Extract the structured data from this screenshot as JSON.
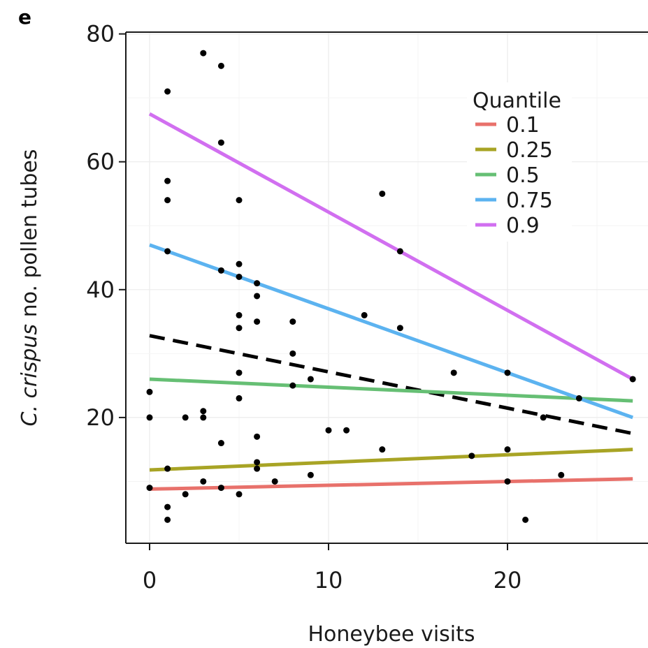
{
  "panel_label": "e",
  "chart_data": {
    "type": "scatter",
    "xlabel": "Honeybee visits",
    "ylabel_italic": "C. crispus",
    "ylabel_rest": " no. pollen tubes",
    "xlim": [
      -1.5,
      28
    ],
    "ylim": [
      0,
      80
    ],
    "xticks": [
      0,
      10,
      20
    ],
    "xtick_labels": [
      "0",
      "10",
      "20"
    ],
    "yticks": [
      20,
      40,
      60,
      80
    ],
    "ytick_labels": [
      "20",
      "40",
      "60",
      "80"
    ],
    "grid": true,
    "points": [
      {
        "x": 0,
        "y": 24
      },
      {
        "x": 0,
        "y": 20
      },
      {
        "x": 0,
        "y": 9
      },
      {
        "x": 1,
        "y": 71
      },
      {
        "x": 1,
        "y": 57
      },
      {
        "x": 1,
        "y": 54
      },
      {
        "x": 1,
        "y": 46
      },
      {
        "x": 1,
        "y": 12
      },
      {
        "x": 1,
        "y": 6
      },
      {
        "x": 1,
        "y": 4
      },
      {
        "x": 2,
        "y": 20
      },
      {
        "x": 2,
        "y": 8
      },
      {
        "x": 3,
        "y": 77
      },
      {
        "x": 3,
        "y": 21
      },
      {
        "x": 3,
        "y": 20
      },
      {
        "x": 3,
        "y": 10
      },
      {
        "x": 4,
        "y": 75
      },
      {
        "x": 4,
        "y": 63
      },
      {
        "x": 4,
        "y": 43
      },
      {
        "x": 4,
        "y": 16
      },
      {
        "x": 4,
        "y": 9
      },
      {
        "x": 5,
        "y": 54
      },
      {
        "x": 5,
        "y": 44
      },
      {
        "x": 5,
        "y": 42
      },
      {
        "x": 5,
        "y": 36
      },
      {
        "x": 5,
        "y": 34
      },
      {
        "x": 5,
        "y": 27
      },
      {
        "x": 5,
        "y": 23
      },
      {
        "x": 5,
        "y": 8
      },
      {
        "x": 6,
        "y": 41
      },
      {
        "x": 6,
        "y": 39
      },
      {
        "x": 6,
        "y": 35
      },
      {
        "x": 6,
        "y": 17
      },
      {
        "x": 6,
        "y": 13
      },
      {
        "x": 6,
        "y": 12
      },
      {
        "x": 7,
        "y": 10
      },
      {
        "x": 8,
        "y": 35
      },
      {
        "x": 8,
        "y": 30
      },
      {
        "x": 8,
        "y": 25
      },
      {
        "x": 9,
        "y": 26
      },
      {
        "x": 9,
        "y": 11
      },
      {
        "x": 10,
        "y": 18
      },
      {
        "x": 11,
        "y": 18
      },
      {
        "x": 12,
        "y": 36
      },
      {
        "x": 13,
        "y": 55
      },
      {
        "x": 13,
        "y": 15
      },
      {
        "x": 14,
        "y": 46
      },
      {
        "x": 14,
        "y": 34
      },
      {
        "x": 17,
        "y": 27
      },
      {
        "x": 18,
        "y": 14
      },
      {
        "x": 20,
        "y": 27
      },
      {
        "x": 20,
        "y": 15
      },
      {
        "x": 20,
        "y": 10
      },
      {
        "x": 21,
        "y": 4
      },
      {
        "x": 22,
        "y": 20
      },
      {
        "x": 23,
        "y": 11
      },
      {
        "x": 24,
        "y": 23
      },
      {
        "x": 27,
        "y": 26
      }
    ],
    "quantile_lines": [
      {
        "quantile": "0.1",
        "color": "#e8716b",
        "x": [
          0,
          27
        ],
        "y": [
          8.8,
          10.4
        ]
      },
      {
        "quantile": "0.25",
        "color": "#a8a425",
        "x": [
          0,
          27
        ],
        "y": [
          11.8,
          15.0
        ]
      },
      {
        "quantile": "0.5",
        "color": "#66bf74",
        "x": [
          0,
          27
        ],
        "y": [
          26.0,
          22.6
        ]
      },
      {
        "quantile": "0.75",
        "color": "#5cb3f0",
        "x": [
          0,
          27
        ],
        "y": [
          47.0,
          20.0
        ]
      },
      {
        "quantile": "0.9",
        "color": "#d16ff0",
        "x": [
          0,
          27
        ],
        "y": [
          67.5,
          26.0
        ]
      }
    ],
    "mean_line": {
      "color": "#000000",
      "style": "dashed",
      "x": [
        0,
        27
      ],
      "y": [
        32.8,
        17.5
      ]
    },
    "legend": {
      "title": "Quantile",
      "placement": "top-right",
      "entries": [
        {
          "label": "0.1",
          "color": "#e8716b"
        },
        {
          "label": "0.25",
          "color": "#a8a425"
        },
        {
          "label": "0.5",
          "color": "#66bf74"
        },
        {
          "label": "0.75",
          "color": "#5cb3f0"
        },
        {
          "label": "0.9",
          "color": "#d16ff0"
        }
      ]
    }
  }
}
